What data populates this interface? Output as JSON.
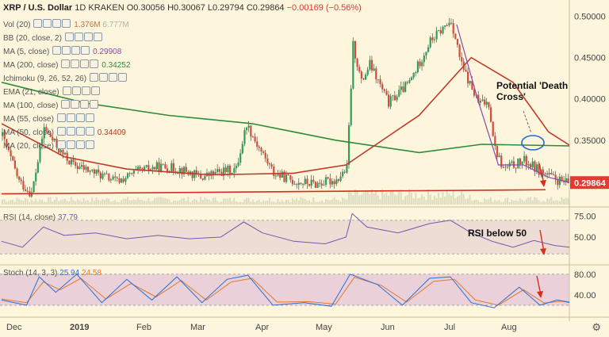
{
  "header": {
    "symbol": "XRP / U.S. Dollar",
    "interval": "1D",
    "exchange": "KRAKEN",
    "open": "O0.30056",
    "high": "H0.30067",
    "low": "L0.29794",
    "close": "C0.29864",
    "change": "−0.00169 (−0.56%)"
  },
  "indicators": [
    {
      "label": "Vol (20)",
      "v1": "1.376M",
      "v2": "6.777M",
      "c1": "#d26b3e",
      "c2": "#b0b0b0"
    },
    {
      "label": "BB (20, close, 2)",
      "v1": "",
      "v2": "",
      "c1": "#2a6fd4",
      "c2": ""
    },
    {
      "label": "MA (5, close)",
      "v1": "0.29908",
      "v2": "",
      "c1": "#8e44ad",
      "c2": ""
    },
    {
      "label": "MA (200, close)",
      "v1": "0.34252",
      "v2": "",
      "c1": "#2e8b3a",
      "c2": ""
    },
    {
      "label": "Ichimoku (9, 26, 52, 26)",
      "v1": "",
      "v2": "",
      "c1": "#2a6fd4",
      "c2": ""
    },
    {
      "label": "EMA (21, close)",
      "v1": "",
      "v2": "",
      "c1": "#2a6fd4",
      "c2": ""
    },
    {
      "label": "MA (100, close)",
      "v1": "",
      "v2": "",
      "c1": "#2a6fd4",
      "c2": ""
    },
    {
      "label": "MA (55, close)",
      "v1": "",
      "v2": "",
      "c1": "#2a6fd4",
      "c2": ""
    },
    {
      "label": "MA (50, close)",
      "v1": "0.34409",
      "v2": "",
      "c1": "#c0392b",
      "c2": ""
    },
    {
      "label": "MA (20, close)",
      "v1": "",
      "v2": "",
      "c1": "#2a6fd4",
      "c2": ""
    }
  ],
  "colors": {
    "up": "#2e9e5b",
    "down": "#d64c3b",
    "ma50": "#c0392b",
    "ma200": "#2e8b3a",
    "ma5": "#8e44ad",
    "rsi": "#7a52b0",
    "stochK": "#2a6fd4",
    "stochD": "#e07a30",
    "trend": "#d62d20",
    "ellipse": "#1f66d1",
    "priceTag": "#e23a2e"
  },
  "chart_data": [
    {
      "type": "candlestick",
      "title": "XRP / U.S. Dollar 1D KRAKEN",
      "x_ticks": [
        "Dec",
        "2019",
        "Feb",
        "Mar",
        "Apr",
        "May",
        "Jun",
        "Jul",
        "Aug"
      ],
      "y_ticks": [
        0.5,
        0.45,
        0.4,
        0.35
      ],
      "ylim": [
        0.272,
        0.512
      ],
      "last_price": "0.29864",
      "close_path": [
        [
          0,
          0.355
        ],
        [
          8,
          0.3
        ],
        [
          14,
          0.285
        ],
        [
          20,
          0.365
        ],
        [
          28,
          0.335
        ],
        [
          34,
          0.32
        ],
        [
          45,
          0.31
        ],
        [
          55,
          0.3
        ],
        [
          65,
          0.312
        ],
        [
          75,
          0.318
        ],
        [
          85,
          0.315
        ],
        [
          95,
          0.305
        ],
        [
          105,
          0.312
        ],
        [
          112,
          0.315
        ],
        [
          117,
          0.37
        ],
        [
          122,
          0.345
        ],
        [
          130,
          0.31
        ],
        [
          140,
          0.3
        ],
        [
          150,
          0.297
        ],
        [
          160,
          0.302
        ],
        [
          165,
          0.315
        ],
        [
          168,
          0.465
        ],
        [
          172,
          0.42
        ],
        [
          176,
          0.442
        ],
        [
          185,
          0.395
        ],
        [
          195,
          0.42
        ],
        [
          205,
          0.47
        ],
        [
          215,
          0.495
        ],
        [
          220,
          0.44
        ],
        [
          228,
          0.395
        ],
        [
          233,
          0.395
        ],
        [
          236,
          0.34
        ],
        [
          240,
          0.315
        ],
        [
          250,
          0.325
        ],
        [
          258,
          0.312
        ],
        [
          265,
          0.302
        ],
        [
          270,
          0.298
        ]
      ],
      "ma50_path": [
        [
          0,
          0.37
        ],
        [
          30,
          0.33
        ],
        [
          60,
          0.315
        ],
        [
          100,
          0.308
        ],
        [
          140,
          0.31
        ],
        [
          165,
          0.32
        ],
        [
          200,
          0.38
        ],
        [
          225,
          0.45
        ],
        [
          245,
          0.42
        ],
        [
          262,
          0.36
        ],
        [
          272,
          0.344
        ]
      ],
      "ma200_path": [
        [
          0,
          0.42
        ],
        [
          40,
          0.395
        ],
        [
          80,
          0.38
        ],
        [
          120,
          0.37
        ],
        [
          160,
          0.35
        ],
        [
          200,
          0.335
        ],
        [
          230,
          0.345
        ],
        [
          272,
          0.343
        ]
      ],
      "ma5_path": [
        [
          218,
          0.49
        ],
        [
          228,
          0.4
        ],
        [
          238,
          0.32
        ],
        [
          250,
          0.32
        ],
        [
          262,
          0.305
        ],
        [
          272,
          0.299
        ]
      ],
      "trendline": {
        "from": [
          0,
          0.285
        ],
        "to": [
          272,
          0.29
        ]
      },
      "annotations": [
        {
          "text": "Potential 'Death Cross'"
        }
      ]
    },
    {
      "type": "line",
      "title": "RSI (14, close)",
      "value": "37.79",
      "y_ticks": [
        75.0,
        50.0
      ],
      "ylim": [
        18,
        82
      ],
      "values_path": [
        [
          0,
          45
        ],
        [
          10,
          38
        ],
        [
          20,
          62
        ],
        [
          30,
          52
        ],
        [
          45,
          55
        ],
        [
          60,
          48
        ],
        [
          75,
          52
        ],
        [
          90,
          48
        ],
        [
          105,
          50
        ],
        [
          116,
          68
        ],
        [
          125,
          55
        ],
        [
          140,
          45
        ],
        [
          155,
          42
        ],
        [
          165,
          50
        ],
        [
          168,
          78
        ],
        [
          175,
          62
        ],
        [
          190,
          55
        ],
        [
          205,
          66
        ],
        [
          215,
          70
        ],
        [
          225,
          55
        ],
        [
          235,
          45
        ],
        [
          245,
          38
        ],
        [
          255,
          46
        ],
        [
          265,
          40
        ],
        [
          272,
          38
        ]
      ],
      "annotations": [
        {
          "text": "RSI below 50"
        }
      ]
    },
    {
      "type": "line",
      "title": "Stoch (14, 3, 3)",
      "k_value": "25.94",
      "d_value": "24.58",
      "y_ticks": [
        80.0,
        40.0
      ],
      "ylim": [
        0,
        95
      ],
      "k_path": [
        [
          0,
          30
        ],
        [
          12,
          20
        ],
        [
          18,
          75
        ],
        [
          26,
          45
        ],
        [
          36,
          80
        ],
        [
          48,
          25
        ],
        [
          60,
          70
        ],
        [
          72,
          30
        ],
        [
          84,
          75
        ],
        [
          96,
          25
        ],
        [
          108,
          70
        ],
        [
          118,
          78
        ],
        [
          130,
          20
        ],
        [
          145,
          25
        ],
        [
          158,
          18
        ],
        [
          167,
          80
        ],
        [
          180,
          60
        ],
        [
          192,
          20
        ],
        [
          205,
          72
        ],
        [
          215,
          75
        ],
        [
          225,
          25
        ],
        [
          236,
          15
        ],
        [
          248,
          55
        ],
        [
          258,
          20
        ],
        [
          266,
          30
        ],
        [
          272,
          26
        ]
      ],
      "d_path": [
        [
          0,
          32
        ],
        [
          12,
          25
        ],
        [
          20,
          65
        ],
        [
          28,
          50
        ],
        [
          38,
          72
        ],
        [
          50,
          32
        ],
        [
          62,
          62
        ],
        [
          74,
          36
        ],
        [
          86,
          68
        ],
        [
          98,
          30
        ],
        [
          110,
          65
        ],
        [
          120,
          72
        ],
        [
          132,
          26
        ],
        [
          147,
          27
        ],
        [
          160,
          22
        ],
        [
          169,
          74
        ],
        [
          182,
          58
        ],
        [
          194,
          26
        ],
        [
          207,
          66
        ],
        [
          217,
          70
        ],
        [
          227,
          30
        ],
        [
          238,
          20
        ],
        [
          250,
          50
        ],
        [
          260,
          24
        ],
        [
          268,
          28
        ],
        [
          272,
          25
        ]
      ]
    }
  ]
}
